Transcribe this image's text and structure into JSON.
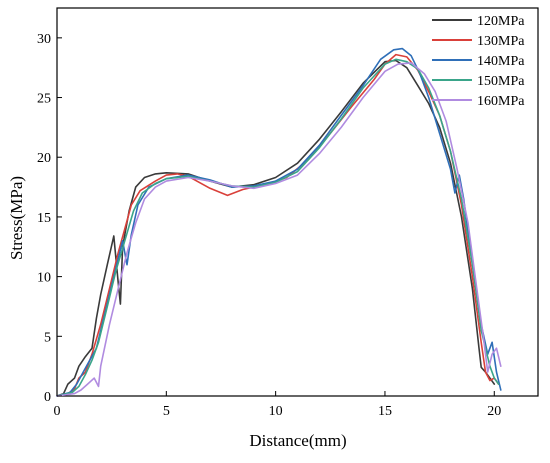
{
  "chart_data": {
    "type": "line",
    "title": "",
    "xlabel": "Distance(mm)",
    "ylabel": "Stress(MPa)",
    "xlim": [
      0,
      22
    ],
    "ylim": [
      0,
      32.5
    ],
    "xticks": [
      0,
      5,
      10,
      15,
      20
    ],
    "yticks": [
      0,
      5,
      10,
      15,
      20,
      25,
      30
    ],
    "grid": false,
    "legend_position": "top-right",
    "series": [
      {
        "name": "120MPa",
        "color": "#3a3a3a",
        "x": [
          0,
          0.3,
          0.5,
          0.8,
          1.0,
          1.3,
          1.6,
          1.8,
          2.0,
          2.3,
          2.6,
          2.8,
          2.9,
          3.0,
          3.3,
          3.6,
          4.0,
          4.5,
          5.0,
          6.0,
          7.0,
          8.0,
          9.0,
          10.0,
          11.0,
          12.0,
          13.0,
          14.0,
          15.0,
          15.5,
          16.0,
          16.5,
          17.0,
          17.5,
          18.0,
          18.5,
          19.0,
          19.3,
          19.4,
          19.6,
          19.8,
          20.0
        ],
        "y": [
          0,
          0.2,
          1.0,
          1.5,
          2.5,
          3.3,
          4.0,
          6.5,
          8.5,
          11.0,
          13.4,
          9.5,
          7.7,
          12.5,
          15.5,
          17.5,
          18.3,
          18.6,
          18.7,
          18.6,
          18.0,
          17.5,
          17.7,
          18.3,
          19.5,
          21.5,
          23.8,
          26.2,
          28.0,
          28.1,
          27.5,
          26.0,
          24.5,
          22.5,
          19.5,
          15.0,
          9.0,
          4.0,
          2.4,
          2.0,
          1.5,
          1.0
        ]
      },
      {
        "name": "130MPa",
        "color": "#d9403a",
        "x": [
          0,
          0.5,
          0.8,
          1.0,
          1.3,
          1.6,
          2.0,
          2.4,
          2.8,
          3.1,
          3.4,
          3.8,
          4.5,
          5.0,
          5.5,
          6.0,
          7.0,
          7.8,
          8.5,
          9.5,
          10.5,
          11.5,
          12.5,
          13.5,
          14.5,
          15.0,
          15.5,
          16.0,
          16.5,
          17.0,
          17.5,
          18.0,
          18.5,
          19.0,
          19.4,
          19.6,
          19.8,
          20.0,
          20.2
        ],
        "y": [
          0,
          0.2,
          0.6,
          1.5,
          2.0,
          3.5,
          6.0,
          9.0,
          12.0,
          14.0,
          16.0,
          17.2,
          18.0,
          18.5,
          18.6,
          18.4,
          17.4,
          16.8,
          17.3,
          17.7,
          18.3,
          19.8,
          22.0,
          24.3,
          26.5,
          27.8,
          28.6,
          28.4,
          27.3,
          25.5,
          23.5,
          20.5,
          16.0,
          10.0,
          4.5,
          2.0,
          1.3,
          1.5,
          1.0
        ]
      },
      {
        "name": "140MPa",
        "color": "#2f6fb8",
        "x": [
          0,
          0.6,
          0.9,
          1.2,
          1.5,
          1.8,
          2.2,
          2.6,
          3.0,
          3.2,
          3.4,
          3.7,
          4.2,
          5.0,
          6.0,
          7.0,
          8.0,
          9.0,
          10.0,
          11.0,
          12.0,
          13.0,
          14.0,
          14.8,
          15.4,
          15.8,
          16.2,
          16.6,
          17.0,
          17.5,
          18.0,
          18.2,
          18.4,
          18.6,
          19.0,
          19.4,
          19.7,
          19.9,
          20.1,
          20.3
        ],
        "y": [
          0,
          0.3,
          1.0,
          2.0,
          3.0,
          4.0,
          7.0,
          10.0,
          13.0,
          11.0,
          13.5,
          16.0,
          17.5,
          18.2,
          18.5,
          18.1,
          17.5,
          17.6,
          18.0,
          19.0,
          21.0,
          23.5,
          26.0,
          28.2,
          29.0,
          29.1,
          28.5,
          27.0,
          25.0,
          22.0,
          19.0,
          17.0,
          18.5,
          16.5,
          11.0,
          6.0,
          3.5,
          4.5,
          2.0,
          0.5
        ]
      },
      {
        "name": "150MPa",
        "color": "#3aa58a",
        "x": [
          0,
          0.7,
          1.0,
          1.3,
          1.6,
          1.9,
          2.3,
          2.7,
          3.1,
          3.5,
          3.9,
          4.5,
          5.0,
          6.0,
          7.0,
          8.0,
          9.0,
          10.0,
          11.0,
          12.0,
          13.0,
          14.0,
          15.0,
          15.5,
          16.0,
          16.5,
          17.0,
          17.5,
          18.0,
          18.5,
          19.0,
          19.4,
          19.8,
          20.0,
          20.2
        ],
        "y": [
          0,
          0.3,
          0.8,
          1.8,
          3.0,
          4.5,
          7.5,
          10.5,
          13.0,
          15.5,
          17.0,
          17.8,
          18.2,
          18.4,
          18.0,
          17.6,
          17.5,
          17.9,
          18.8,
          20.8,
          23.2,
          25.8,
          27.8,
          28.2,
          28.0,
          27.4,
          25.8,
          23.5,
          20.5,
          16.5,
          11.0,
          5.5,
          2.5,
          1.5,
          1.0
        ]
      },
      {
        "name": "160MPa",
        "color": "#b08be0",
        "x": [
          0,
          0.8,
          1.1,
          1.4,
          1.7,
          1.9,
          2.0,
          2.4,
          2.8,
          3.2,
          3.6,
          4.0,
          4.5,
          5.0,
          6.0,
          7.0,
          8.0,
          9.0,
          10.0,
          11.0,
          12.0,
          13.0,
          14.0,
          15.0,
          15.6,
          16.2,
          16.8,
          17.3,
          17.8,
          18.3,
          18.8,
          19.2,
          19.5,
          19.7,
          19.9,
          20.1,
          20.3
        ],
        "y": [
          0,
          0.2,
          0.5,
          1.0,
          1.5,
          0.8,
          2.5,
          6.0,
          9.0,
          12.0,
          14.5,
          16.5,
          17.5,
          18.0,
          18.3,
          18.0,
          17.6,
          17.4,
          17.8,
          18.5,
          20.3,
          22.5,
          25.0,
          27.2,
          27.8,
          27.9,
          27.0,
          25.5,
          23.0,
          19.0,
          14.5,
          9.0,
          5.0,
          2.0,
          3.5,
          4.0,
          2.5
        ]
      }
    ]
  }
}
